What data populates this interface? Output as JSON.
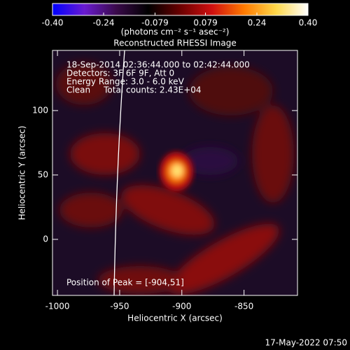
{
  "chart_data": {
    "type": "heatmap",
    "title": "Reconstructed RHESSI Image",
    "colorbar_label": "(photons cm⁻² s⁻¹ asec⁻²)",
    "clim": [
      -0.4,
      0.4
    ],
    "cticks": [
      {
        "value": -0.4,
        "label": "-0.40"
      },
      -0.24,
      -0.079,
      0.079,
      0.24,
      {
        "value": 0.4,
        "label": "0.40"
      }
    ],
    "colormap": [
      "#0000ff",
      "#6a1bd0",
      "#3a0a4a",
      "#000000",
      "#6a0000",
      "#d01010",
      "#ff7a00",
      "#ffd84a",
      "#ffffff"
    ],
    "xlabel": "Heliocentric X (arcsec)",
    "ylabel": "Heliocentric Y (arcsec)",
    "xlim": [
      -1004,
      -807
    ],
    "ylim": [
      -43.5,
      146.7
    ],
    "xticks": [
      -1000,
      -950,
      -900,
      -850
    ],
    "yticks": [
      0,
      50,
      100
    ],
    "annotations": [
      "18-Sep-2014 02:36:44.000 to 02:42:44.000",
      "Detectors: 3F 6F 9F, Att 0",
      "Energy Range: 3.0 - 6.0 keV",
      "Clean     Total counts: 2.43E+04",
      "Position of Peak = [-904,51]"
    ],
    "footer": "17-May-2022 07:50"
  }
}
